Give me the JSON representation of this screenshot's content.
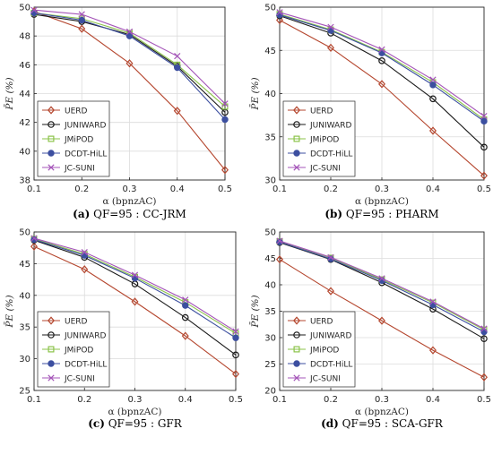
{
  "series_styles": [
    {
      "name": "UERD",
      "color": "#b5472f",
      "marker": "diamond"
    },
    {
      "name": "JUNIWARD",
      "color": "#1a1a1a",
      "marker": "circle"
    },
    {
      "name": "JMiPOD",
      "color": "#8bc34a",
      "marker": "square"
    },
    {
      "name": "DCDT-HiLL",
      "color": "#3c4fa0",
      "marker": "filled-circle"
    },
    {
      "name": "JC-SUNI",
      "color": "#a454b8",
      "marker": "x"
    }
  ],
  "chart_data": [
    {
      "type": "line",
      "caption_label": "(a)",
      "caption_text": "QF=95 : CC-JRM",
      "xlabel": "α (bpnzAC)",
      "ylabel": "P̄E (%)",
      "x": [
        0.1,
        0.2,
        0.3,
        0.4,
        0.5
      ],
      "x_ticks": [
        "0.1",
        "0.2",
        "0.3",
        "0.4",
        "0.5"
      ],
      "ylim": [
        38,
        50
      ],
      "y_ticks": [
        38,
        40,
        42,
        44,
        46,
        48,
        50
      ],
      "grid": true,
      "legend_position": "bottom-left",
      "series": [
        {
          "name": "UERD",
          "values": [
            49.7,
            48.5,
            46.1,
            42.8,
            38.7
          ]
        },
        {
          "name": "JUNIWARD",
          "values": [
            49.5,
            49.0,
            48.1,
            45.9,
            42.7
          ]
        },
        {
          "name": "JMiPOD",
          "values": [
            49.6,
            49.2,
            48.2,
            46.0,
            43.1
          ]
        },
        {
          "name": "DCDT-HiLL",
          "values": [
            49.6,
            49.1,
            48.0,
            45.8,
            42.2
          ]
        },
        {
          "name": "JC-SUNI",
          "values": [
            49.8,
            49.5,
            48.3,
            46.6,
            43.3
          ]
        }
      ]
    },
    {
      "type": "line",
      "caption_label": "(b)",
      "caption_text": "QF=95 : PHARM",
      "xlabel": "α (bpnzAC)",
      "ylabel": "P̄E (%)",
      "x": [
        0.1,
        0.2,
        0.3,
        0.4,
        0.5
      ],
      "x_ticks": [
        "0.1",
        "0.2",
        "0.3",
        "0.4",
        "0.5"
      ],
      "ylim": [
        30,
        50
      ],
      "y_ticks": [
        30,
        35,
        40,
        45,
        50
      ],
      "grid": true,
      "legend_position": "bottom-left",
      "series": [
        {
          "name": "UERD",
          "values": [
            48.5,
            45.3,
            41.1,
            35.7,
            30.5
          ]
        },
        {
          "name": "JUNIWARD",
          "values": [
            49.0,
            47.0,
            43.8,
            39.4,
            33.8
          ]
        },
        {
          "name": "JMiPOD",
          "values": [
            49.2,
            47.4,
            44.8,
            41.3,
            37.0
          ]
        },
        {
          "name": "DCDT-HiLL",
          "values": [
            49.1,
            47.3,
            44.7,
            41.0,
            36.8
          ]
        },
        {
          "name": "JC-SUNI",
          "values": [
            49.4,
            47.7,
            45.1,
            41.6,
            37.4
          ]
        }
      ]
    },
    {
      "type": "line",
      "caption_label": "(c)",
      "caption_text": "QF=95 : GFR",
      "xlabel": "α (bpnzAC)",
      "ylabel": "P̄E (%)",
      "x": [
        0.1,
        0.2,
        0.3,
        0.4,
        0.5
      ],
      "x_ticks": [
        "0.1",
        "0.2",
        "0.3",
        "0.4",
        "0.5"
      ],
      "ylim": [
        25,
        50
      ],
      "y_ticks": [
        25,
        30,
        35,
        40,
        45,
        50
      ],
      "grid": true,
      "legend_position": "bottom-left",
      "series": [
        {
          "name": "UERD",
          "values": [
            47.7,
            44.1,
            39.0,
            33.6,
            27.6
          ]
        },
        {
          "name": "JUNIWARD",
          "values": [
            48.7,
            46.0,
            41.8,
            36.5,
            30.6
          ]
        },
        {
          "name": "JMiPOD",
          "values": [
            48.9,
            46.5,
            42.9,
            38.9,
            34.0
          ]
        },
        {
          "name": "DCDT-HiLL",
          "values": [
            48.8,
            46.3,
            42.7,
            38.4,
            33.3
          ]
        },
        {
          "name": "JC-SUNI",
          "values": [
            49.0,
            46.8,
            43.2,
            39.3,
            34.3
          ]
        }
      ]
    },
    {
      "type": "line",
      "caption_label": "(d)",
      "caption_text": "QF=95 : SCA-GFR",
      "xlabel": "α (bpnzAC)",
      "ylabel": "P̄E (%)",
      "x": [
        0.1,
        0.2,
        0.3,
        0.4,
        0.5
      ],
      "x_ticks": [
        "0.1",
        "0.2",
        "0.3",
        "0.4",
        "0.5"
      ],
      "ylim": [
        20,
        50
      ],
      "y_ticks": [
        20,
        25,
        30,
        35,
        40,
        45,
        50
      ],
      "grid": true,
      "legend_position": "bottom-left",
      "series": [
        {
          "name": "UERD",
          "values": [
            44.8,
            38.8,
            33.2,
            27.6,
            22.5
          ]
        },
        {
          "name": "JUNIWARD",
          "values": [
            48.0,
            44.8,
            40.4,
            35.4,
            29.8
          ]
        },
        {
          "name": "JMiPOD",
          "values": [
            48.2,
            45.1,
            41.0,
            36.6,
            31.5
          ]
        },
        {
          "name": "DCDT-HiLL",
          "values": [
            48.1,
            44.9,
            40.8,
            36.2,
            31.1
          ]
        },
        {
          "name": "JC-SUNI",
          "values": [
            48.3,
            45.2,
            41.2,
            36.8,
            31.7
          ]
        }
      ]
    }
  ]
}
